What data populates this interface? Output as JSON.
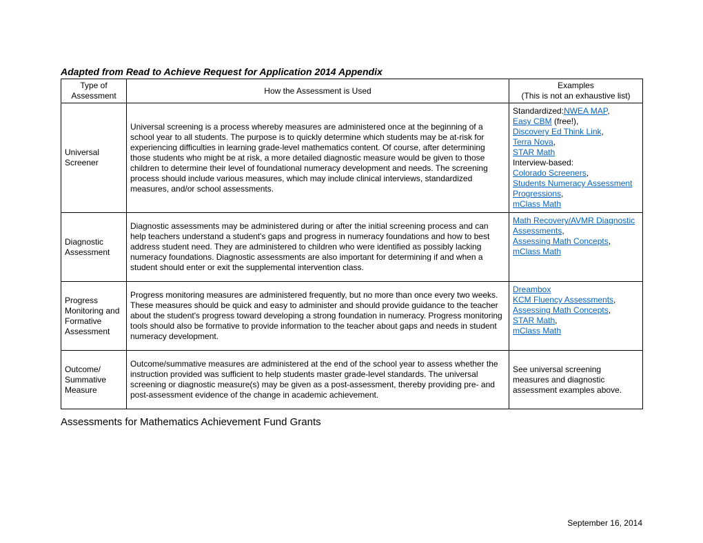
{
  "title": "Adapted from Read to Achieve Request for Application 2014 Appendix",
  "subtitle": "Assessments for Mathematics Achievement Fund Grants",
  "date": "September 16, 2014",
  "headers": {
    "col1": "Type of Assessment",
    "col2": "How the Assessment is Used",
    "col3a": "Examples",
    "col3b": "(This is not an exhaustive list)"
  },
  "rows": [
    {
      "type": "Universal Screener",
      "how": "Universal screening is a process whereby measures are administered once at the beginning of a school year to all students. The purpose is to quickly determine which students may be at-risk for experiencing difficulties in learning grade-level mathematics content. Of course, after determining those students who might be at risk, a more detailed diagnostic measure would be given to those children to determine their level of foundational numeracy development and needs. The screening process should include various measures, which may include clinical interviews, standardized measures, and/or school assessments.",
      "examples": [
        {
          "text": "Standardized:"
        },
        {
          "link": "NWEA MAP"
        },
        {
          "text": ","
        },
        {
          "br": true
        },
        {
          "link": "Easy CBM"
        },
        {
          "text": " (free!),"
        },
        {
          "br": true
        },
        {
          "link": "Discovery Ed Think Link"
        },
        {
          "text": ","
        },
        {
          "br": true
        },
        {
          "link": "Terra Nova"
        },
        {
          "text": ","
        },
        {
          "br": true
        },
        {
          "link": "STAR Math"
        },
        {
          "br": true
        },
        {
          "text": "Interview-based:"
        },
        {
          "br": true
        },
        {
          "link": "Colorado Screeners"
        },
        {
          "text": ","
        },
        {
          "br": true
        },
        {
          "link": "Students Numeracy Assessment Progressions"
        },
        {
          "text": ","
        },
        {
          "br": true
        },
        {
          "link": "mClass Math"
        }
      ]
    },
    {
      "type": "Diagnostic Assessment",
      "how": "Diagnostic assessments may be administered during or after the initial screening process and can help teachers understand a student's gaps and progress in numeracy foundations and how to best address student need. They are administered to children who were identified as possibly lacking numeracy foundations. Diagnostic assessments are also important for determining if and when a student should enter or exit the supplemental intervention class.",
      "examples": [
        {
          "link": "Math Recovery/AVMR Diagnostic Assessments"
        },
        {
          "text": ","
        },
        {
          "br": true
        },
        {
          "link": "Assessing Math Concepts"
        },
        {
          "text": ","
        },
        {
          "br": true
        },
        {
          "link": "mClass Math"
        }
      ]
    },
    {
      "type": "Progress Monitoring and Formative Assessment",
      "how": "Progress monitoring measures are administered frequently, but no more than once every two weeks. These measures should be quick and easy to administer and should provide guidance to the teacher about the student's progress toward developing a strong foundation in numeracy. Progress monitoring tools should also be formative to provide information to the teacher about gaps and needs in student numeracy development.",
      "examples": [
        {
          "link": "Dreambox"
        },
        {
          "br": true
        },
        {
          "link": "KCM Fluency Assessments"
        },
        {
          "text": ","
        },
        {
          "br": true
        },
        {
          "link": "Assessing Math Concepts"
        },
        {
          "text": ","
        },
        {
          "br": true
        },
        {
          "link": "STAR Math"
        },
        {
          "text": ","
        },
        {
          "br": true
        },
        {
          "link": "mClass Math"
        }
      ]
    },
    {
      "type": "Outcome/ Summative Measure",
      "how": "Outcome/summative measures are administered at the end of the school year to assess whether the instruction provided was sufficient to help students master grade-level standards. The universal screening or diagnostic measure(s) may be given as a post-assessment, thereby providing pre- and post-assessment evidence of the change in academic achievement.",
      "examples": [
        {
          "text": "See universal screening measures and diagnostic assessment examples above."
        }
      ]
    }
  ]
}
